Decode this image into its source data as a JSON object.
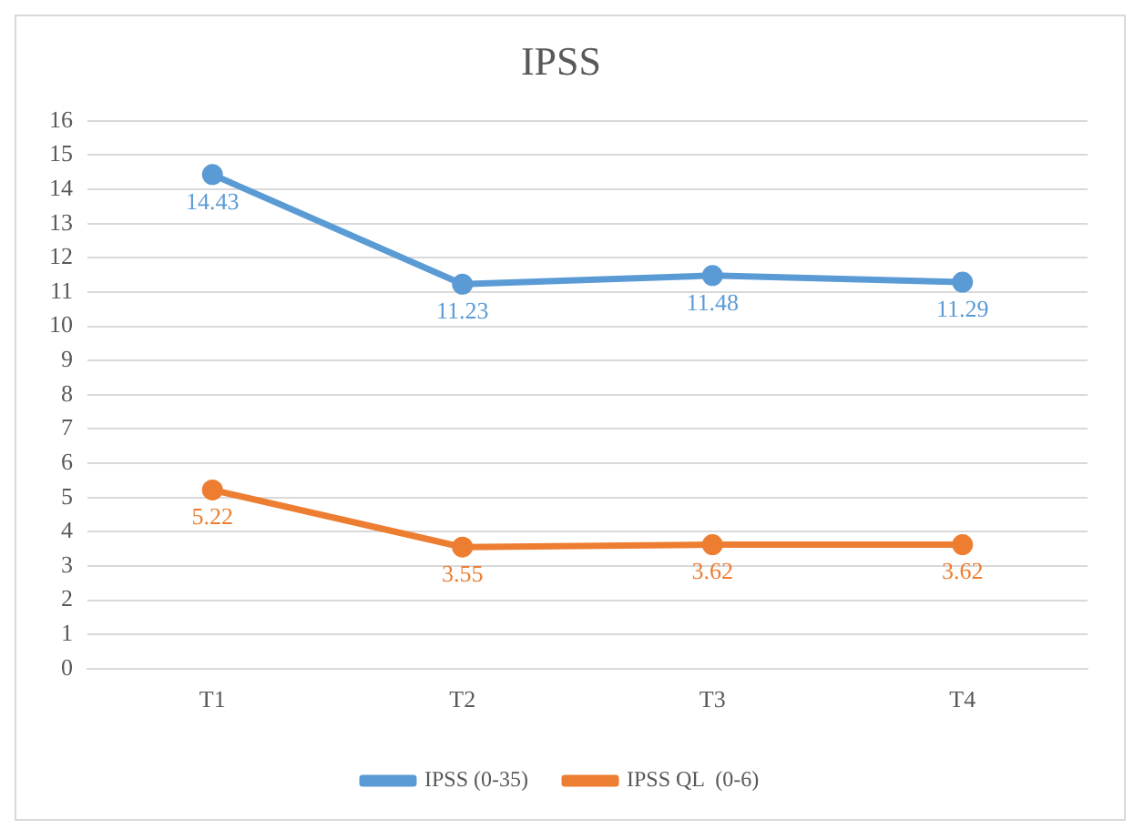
{
  "chart_data": {
    "type": "line",
    "title": "IPSS",
    "categories": [
      "T1",
      "T2",
      "T3",
      "T4"
    ],
    "series": [
      {
        "name": "IPSS (0-35)",
        "color": "#5b9bd5",
        "values": [
          14.43,
          11.23,
          11.48,
          11.29
        ]
      },
      {
        "name": "IPSS QL  (0-6)",
        "color": "#ed7d31",
        "values": [
          5.22,
          3.55,
          3.62,
          3.62
        ]
      }
    ],
    "ylim": [
      0,
      16
    ],
    "yticks": [
      0,
      1,
      2,
      3,
      4,
      5,
      6,
      7,
      8,
      9,
      10,
      11,
      12,
      13,
      14,
      15,
      16
    ],
    "grid": "y",
    "legend": "bottom",
    "marker": "circle",
    "line_style": "solid",
    "data_labels": true
  }
}
